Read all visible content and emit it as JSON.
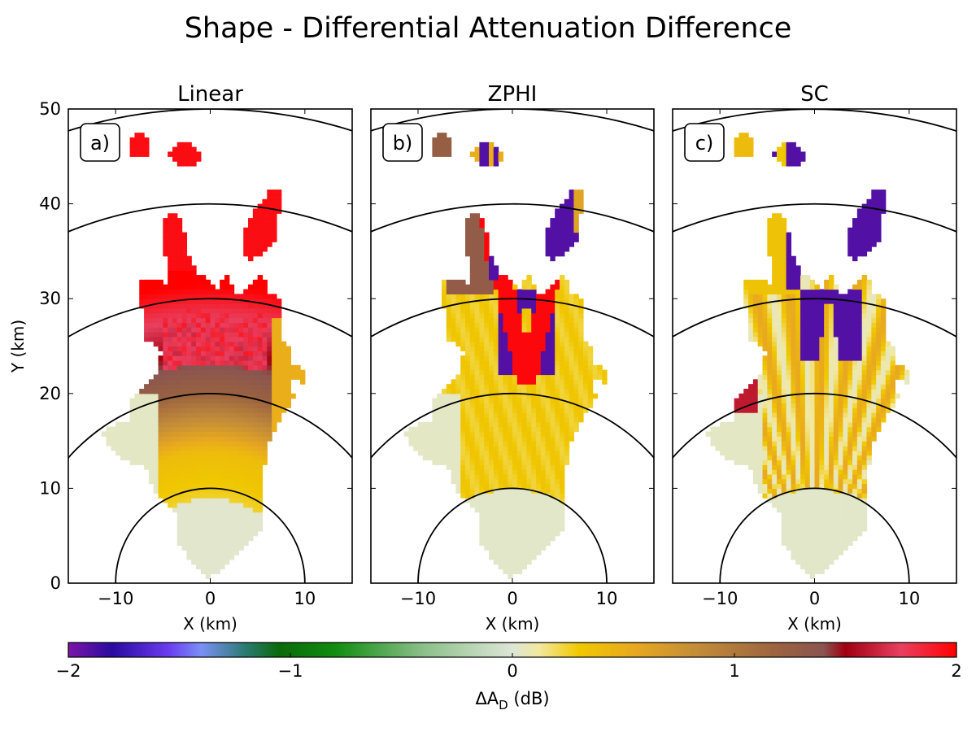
{
  "figure": {
    "title": "Shape - Differential Attenuation Difference"
  },
  "chart_data": [
    {
      "type": "heatmap",
      "title": "Linear",
      "panel_label": "a)",
      "xlabel": "X (km)",
      "ylabel": "Y (km)",
      "xlim": [
        -15,
        15
      ],
      "ylim": [
        0,
        50
      ],
      "x_ticks": [
        -10,
        0,
        10
      ],
      "y_ticks": [
        0,
        10,
        20,
        30,
        40,
        50
      ],
      "range_rings_km": [
        10,
        20,
        30,
        40,
        50
      ],
      "grid": false
    },
    {
      "type": "heatmap",
      "title": "ZPHI",
      "panel_label": "b)",
      "xlabel": "X (km)",
      "ylabel": "",
      "xlim": [
        -15,
        15
      ],
      "ylim": [
        0,
        50
      ],
      "x_ticks": [
        -10,
        0,
        10
      ],
      "y_ticks": [
        0,
        10,
        20,
        30,
        40,
        50
      ],
      "range_rings_km": [
        10,
        20,
        30,
        40,
        50
      ],
      "grid": false
    },
    {
      "type": "heatmap",
      "title": "SC",
      "panel_label": "c)",
      "xlabel": "X (km)",
      "ylabel": "",
      "xlim": [
        -15,
        15
      ],
      "ylim": [
        0,
        50
      ],
      "x_ticks": [
        -10,
        0,
        10
      ],
      "y_ticks": [
        0,
        10,
        20,
        30,
        40,
        50
      ],
      "range_rings_km": [
        10,
        20,
        30,
        40,
        50
      ],
      "grid": false
    }
  ],
  "colorbar": {
    "label_main": "ΔA",
    "label_sub": "D",
    "label_unit": "(dB)",
    "min": -2,
    "max": 2,
    "ticks": [
      -2,
      -1,
      0,
      1,
      2
    ],
    "placement": "bottom",
    "stops": [
      {
        "v": -2.0,
        "c": "#7a16a8"
      },
      {
        "v": -1.8,
        "c": "#2a0aa0"
      },
      {
        "v": -1.55,
        "c": "#6a3cf0"
      },
      {
        "v": -1.4,
        "c": "#7a90f5"
      },
      {
        "v": -1.2,
        "c": "#2a7a70"
      },
      {
        "v": -1.05,
        "c": "#0a6a0a"
      },
      {
        "v": -0.8,
        "c": "#108c10"
      },
      {
        "v": -0.4,
        "c": "#8cc08a"
      },
      {
        "v": 0.0,
        "c": "#dde6d6"
      },
      {
        "v": 0.12,
        "c": "#f2e8a0"
      },
      {
        "v": 0.3,
        "c": "#f0c800"
      },
      {
        "v": 0.55,
        "c": "#e8a820"
      },
      {
        "v": 0.85,
        "c": "#c08a3a"
      },
      {
        "v": 1.2,
        "c": "#9a6240"
      },
      {
        "v": 1.4,
        "c": "#8a5550"
      },
      {
        "v": 1.5,
        "c": "#a00010"
      },
      {
        "v": 1.75,
        "c": "#e84060"
      },
      {
        "v": 2.0,
        "c": "#ff0000"
      }
    ]
  }
}
